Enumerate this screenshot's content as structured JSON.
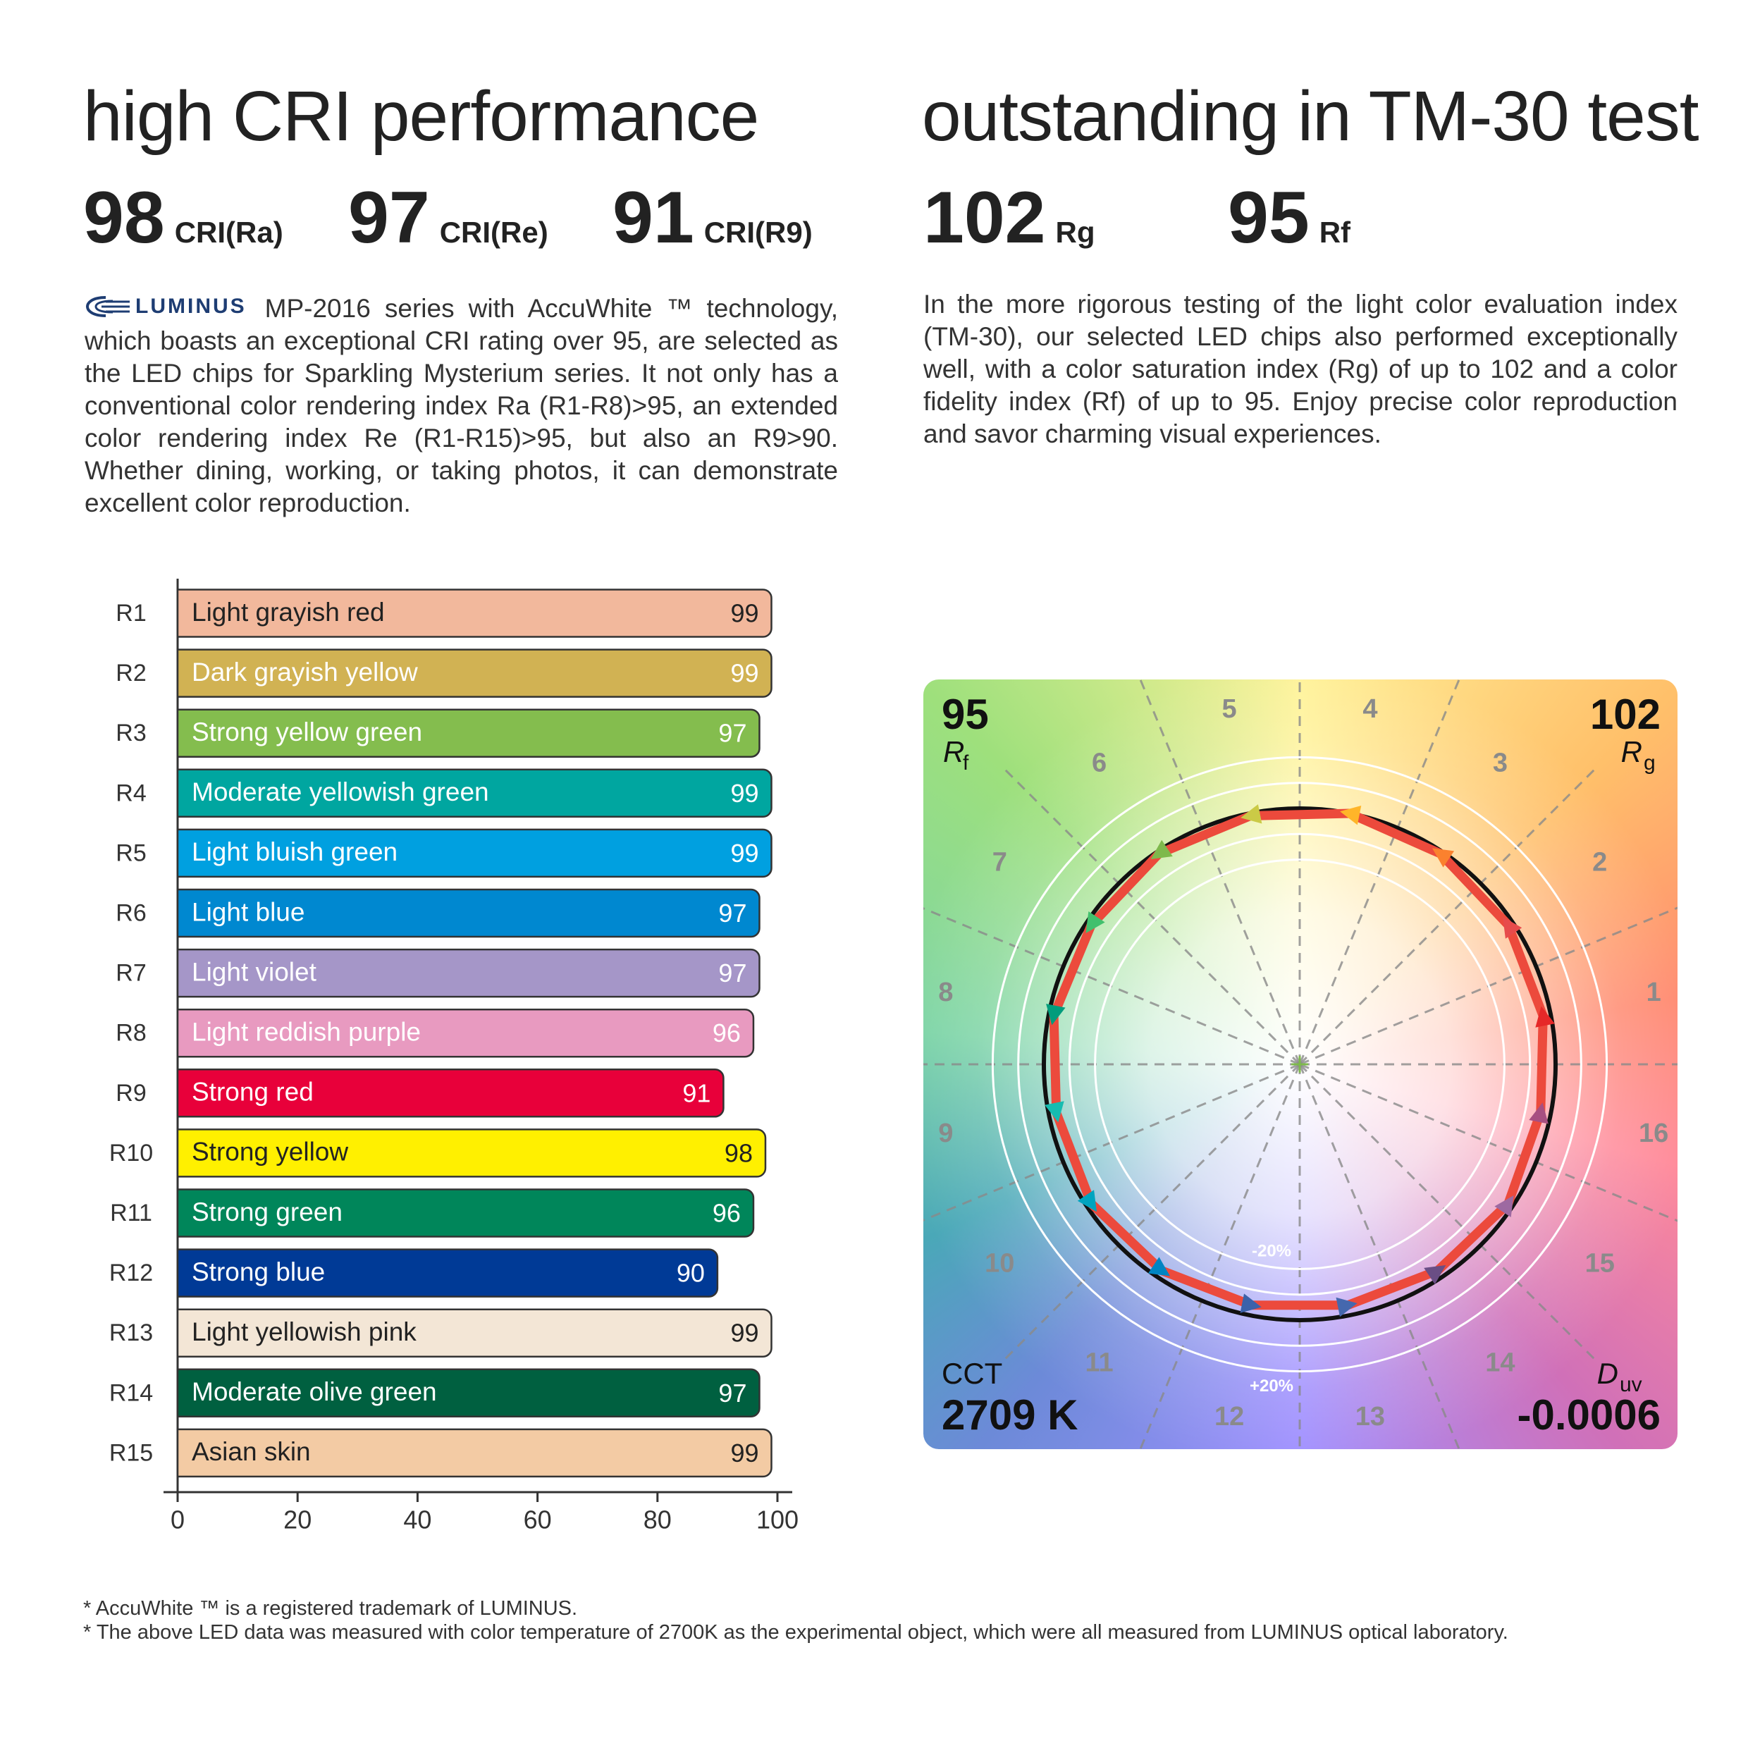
{
  "left": {
    "title": "high CRI performance",
    "metrics": [
      {
        "value": 98,
        "label": "CRI(Ra)"
      },
      {
        "value": 97,
        "label": "CRI(Re)"
      },
      {
        "value": 91,
        "label": "CRI(R9)"
      }
    ],
    "logo": "LUMINUS",
    "text": "MP-2016 series with AccuWhite ™ technology, which boasts an exceptional CRI rating over 95, are selected as the LED chips for Sparkling Mysterium series. It not only has a conventional color rendering index Ra (R1-R8)>95, an extended color rendering index Re (R1-R15)>95, but also an R9>90. Whether dining, working, or taking photos, it can demonstrate excellent color reproduction."
  },
  "right": {
    "title": "outstanding in TM-30 test",
    "metrics": [
      {
        "value": 102,
        "label": "Rg"
      },
      {
        "value": 95,
        "label": "Rf"
      }
    ],
    "text": "In the more rigorous testing of the light color evaluation index (TM-30), our selected LED chips also performed exceptionally well, with a color saturation index (Rg) of up to 102 and a color fidelity index (Rf) of up to 95. Enjoy precise color reproduction and savor charming visual experiences."
  },
  "chart_data": {
    "type": "bar",
    "orientation": "horizontal",
    "categories": [
      "R1",
      "R2",
      "R3",
      "R4",
      "R5",
      "R6",
      "R7",
      "R8",
      "R9",
      "R10",
      "R11",
      "R12",
      "R13",
      "R14",
      "R15"
    ],
    "descriptions": [
      "Light grayish red",
      "Dark grayish yellow",
      "Strong yellow green",
      "Moderate yellowish green",
      "Light bluish green",
      "Light blue",
      "Light violet",
      "Light reddish purple",
      "Strong red",
      "Strong yellow",
      "Strong green",
      "Strong blue",
      "Light yellowish pink",
      "Moderate olive green",
      "Asian skin"
    ],
    "values": [
      99,
      99,
      97,
      99,
      99,
      97,
      97,
      96,
      91,
      98,
      96,
      90,
      99,
      97,
      99
    ],
    "colors": [
      "#f2b89c",
      "#d1b253",
      "#84bd4e",
      "#00a6a0",
      "#00a0e0",
      "#0088d0",
      "#a596c8",
      "#e89ac0",
      "#e8003a",
      "#fff000",
      "#00865a",
      "#003a96",
      "#f3e6d6",
      "#006040",
      "#f3cba4"
    ],
    "label_colors": [
      "#222222",
      "#ffffff",
      "#ffffff",
      "#ffffff",
      "#ffffff",
      "#ffffff",
      "#ffffff",
      "#ffffff",
      "#ffffff",
      "#222222",
      "#ffffff",
      "#ffffff",
      "#222222",
      "#ffffff",
      "#222222"
    ],
    "xlim": [
      0,
      100
    ],
    "xticks": [
      0,
      20,
      40,
      60,
      80,
      100
    ]
  },
  "tm30": {
    "fidelity": {
      "value": 95,
      "symbol": "R",
      "subscript": "f"
    },
    "gamut": {
      "value": 102,
      "symbol": "R",
      "subscript": "g"
    },
    "cct": {
      "label": "CCT",
      "value": "2709 K"
    },
    "duv": {
      "symbol": "D",
      "subscript": "uv",
      "value": "-0.0006"
    },
    "bins": [
      1,
      2,
      3,
      4,
      5,
      6,
      7,
      8,
      9,
      10,
      11,
      12,
      13,
      14,
      15,
      16
    ],
    "bin_colors": [
      "#e62828",
      "#e74b4b",
      "#fb812e",
      "#ffb529",
      "#cbca46",
      "#7eb94c",
      "#41c06d",
      "#009c7c",
      "#16bcb0",
      "#00a4bf",
      "#0085c3",
      "#3b62aa",
      "#4568ae",
      "#6a4e85",
      "#9d69a1",
      "#a74f81"
    ],
    "test_ratios": [
      0.97,
      0.98,
      0.99,
      1.0,
      0.99,
      0.99,
      0.98,
      0.98,
      0.97,
      0.98,
      0.97,
      0.96,
      0.96,
      0.97,
      0.98,
      0.96
    ],
    "ring_labels": [
      "-20%",
      "+20%"
    ]
  },
  "footnotes": [
    "* AccuWhite ™ is a registered trademark of LUMINUS.",
    "* The above LED data was measured with color temperature of 2700K as the experimental object, which were all measured from LUMINUS optical laboratory."
  ]
}
